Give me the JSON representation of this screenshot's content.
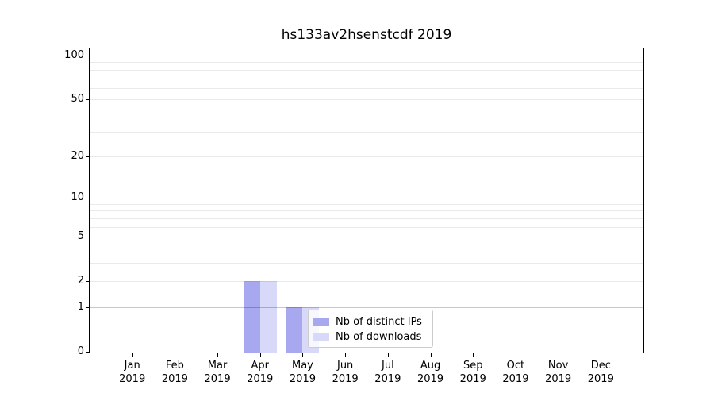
{
  "chart_data": {
    "type": "bar",
    "title": "hs133av2hsenstcdf 2019",
    "year_label": "2019",
    "categories": [
      "Jan",
      "Feb",
      "Mar",
      "Apr",
      "May",
      "Jun",
      "Jul",
      "Aug",
      "Sep",
      "Oct",
      "Nov",
      "Dec"
    ],
    "series": [
      {
        "name": "Nb of distinct IPs",
        "color": "#a8a8f0",
        "values": [
          0,
          0,
          0,
          2,
          1,
          0,
          0,
          0,
          0,
          0,
          0,
          0
        ]
      },
      {
        "name": "Nb of downloads",
        "color": "#d8d8f8",
        "values": [
          0,
          0,
          0,
          2,
          1,
          0,
          0,
          0,
          0,
          0,
          0,
          0
        ]
      }
    ],
    "yscale": "log1p",
    "ylim": [
      0,
      112
    ],
    "y_ticks": [
      0,
      1,
      2,
      5,
      10,
      20,
      50,
      100
    ],
    "y_minor_gridlines": [
      3,
      4,
      6,
      7,
      8,
      9,
      30,
      40,
      60,
      70,
      80,
      90
    ],
    "y_major_gridlines": [
      1,
      10,
      100
    ],
    "grid": "horizontal",
    "legend_position": "lower center-right inside plot",
    "xlabel": "",
    "ylabel": ""
  },
  "colors": {
    "axis": "#000000",
    "background": "#ffffff",
    "bar_distinct_ips": "#a8a8f0",
    "bar_downloads": "#d8d8f8",
    "legend_border": "#cccccc"
  }
}
